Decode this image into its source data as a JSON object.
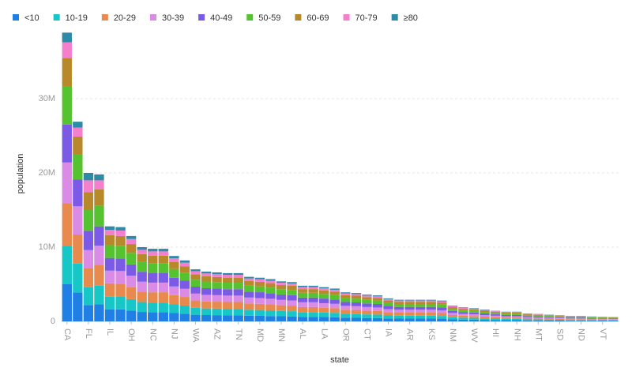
{
  "chart_data": {
    "type": "stacked_bar",
    "x_label": "state",
    "y_label": "population",
    "categories": [
      "CA",
      null,
      "FL",
      null,
      "IL",
      null,
      "OH",
      null,
      "NC",
      null,
      "NJ",
      null,
      "WA",
      null,
      "AZ",
      null,
      "TN",
      null,
      "MD",
      null,
      "MN",
      null,
      "AL",
      null,
      "LA",
      null,
      "OR",
      null,
      "CT",
      null,
      "IA",
      null,
      "AR",
      null,
      "KS",
      null,
      "NM",
      null,
      "WV",
      null,
      "HI",
      null,
      "NH",
      null,
      "MT",
      null,
      "SD",
      null,
      "ND",
      null,
      "VT",
      null
    ],
    "ylim": [
      0,
      40000000.0
    ],
    "yticks": [
      0,
      {
        "value": 10000000.0,
        "label": "10M"
      },
      {
        "value": 20000000.0,
        "label": "20M"
      },
      {
        "value": 30000000.0,
        "label": "30M"
      }
    ],
    "grid": true,
    "legend": "top",
    "series": [
      {
        "name": "<10",
        "color": "#1f7fe5",
        "values": [
          5000000.0,
          3900000.0,
          2200000.0,
          2300000.0,
          1630000.0,
          1610000.0,
          1460000.0,
          1270000.0,
          1240000.0,
          1240000.0,
          1120000.0,
          1040000.0,
          890000.0,
          850000.0,
          840000.0,
          830000.0,
          830000.0,
          760000.0,
          750000.0,
          720000.0,
          690000.0,
          670000.0,
          610000.0,
          610000.0,
          580000.0,
          560000.0,
          500000.0,
          480000.0,
          460000.0,
          440000.0,
          390000.0,
          370000.0,
          370000.0,
          370000.0,
          370000.0,
          360000.0,
          270000.0,
          240000.0,
          230000.0,
          200000.0,
          180000.0,
          170000.0,
          170000.0,
          130000.0,
          130000.0,
          120000.0,
          110000.0,
          90000.0,
          90000.0,
          80000.0,
          80000.0,
          70000.0
        ]
      },
      {
        "name": "10-19",
        "color": "#17c7c7",
        "values": [
          5200000.0,
          3900000.0,
          2400000.0,
          2500000.0,
          1700000.0,
          1690000.0,
          1530000.0,
          1330000.0,
          1300000.0,
          1300000.0,
          1170000.0,
          1090000.0,
          930000.0,
          890000.0,
          880000.0,
          860000.0,
          860000.0,
          800000.0,
          780000.0,
          760000.0,
          720000.0,
          700000.0,
          640000.0,
          640000.0,
          610000.0,
          590000.0,
          520000.0,
          510000.0,
          480000.0,
          470000.0,
          410000.0,
          390000.0,
          390000.0,
          390000.0,
          390000.0,
          370000.0,
          280000.0,
          250000.0,
          240000.0,
          210000.0,
          190000.0,
          170000.0,
          170000.0,
          140000.0,
          130000.0,
          120000.0,
          110000.0,
          100000.0,
          100000.0,
          90000.0,
          80000.0,
          80000.0
        ]
      },
      {
        "name": "20-29",
        "color": "#e8894d",
        "values": [
          5700000.0,
          3900000.0,
          2600000.0,
          2800000.0,
          1800000.0,
          1790000.0,
          1620000.0,
          1410000.0,
          1380000.0,
          1380000.0,
          1240000.0,
          1160000.0,
          990000.0,
          940000.0,
          930000.0,
          920000.0,
          920000.0,
          850000.0,
          830000.0,
          800000.0,
          760000.0,
          750000.0,
          680000.0,
          680000.0,
          650000.0,
          620000.0,
          550000.0,
          540000.0,
          510000.0,
          490000.0,
          440000.0,
          410000.0,
          410000.0,
          410000.0,
          410000.0,
          390000.0,
          300000.0,
          270000.0,
          250000.0,
          230000.0,
          200000.0,
          180000.0,
          180000.0,
          150000.0,
          140000.0,
          130000.0,
          120000.0,
          100000.0,
          100000.0,
          90000.0,
          90000.0,
          80000.0
        ]
      },
      {
        "name": "30-39",
        "color": "#d98be6",
        "values": [
          5500000.0,
          3800000.0,
          2400000.0,
          2600000.0,
          1700000.0,
          1690000.0,
          1530000.0,
          1330000.0,
          1300000.0,
          1300000.0,
          1170000.0,
          1090000.0,
          930000.0,
          890000.0,
          880000.0,
          860000.0,
          860000.0,
          800000.0,
          780000.0,
          760000.0,
          720000.0,
          700000.0,
          640000.0,
          640000.0,
          610000.0,
          590000.0,
          520000.0,
          510000.0,
          480000.0,
          470000.0,
          410000.0,
          390000.0,
          390000.0,
          390000.0,
          390000.0,
          370000.0,
          280000.0,
          250000.0,
          240000.0,
          210000.0,
          190000.0,
          170000.0,
          170000.0,
          140000.0,
          130000.0,
          120000.0,
          110000.0,
          100000.0,
          100000.0,
          90000.0,
          80000.0,
          80000.0
        ]
      },
      {
        "name": "40-49",
        "color": "#7b5be6",
        "values": [
          5100000.0,
          3600000.0,
          2600000.0,
          2600000.0,
          1720000.0,
          1700000.0,
          1540000.0,
          1340000.0,
          1310000.0,
          1310000.0,
          1180000.0,
          1100000.0,
          940000.0,
          900000.0,
          880000.0,
          870000.0,
          870000.0,
          800000.0,
          790000.0,
          760000.0,
          720000.0,
          710000.0,
          640000.0,
          640000.0,
          620000.0,
          590000.0,
          520000.0,
          510000.0,
          480000.0,
          470000.0,
          420000.0,
          390000.0,
          390000.0,
          390000.0,
          390000.0,
          380000.0,
          280000.0,
          250000.0,
          240000.0,
          210000.0,
          190000.0,
          170000.0,
          170000.0,
          140000.0,
          130000.0,
          120000.0,
          110000.0,
          100000.0,
          100000.0,
          90000.0,
          80000.0,
          80000.0
        ]
      },
      {
        "name": "50-59",
        "color": "#55c22f",
        "values": [
          5200000.0,
          3400000.0,
          2800000.0,
          2800000.0,
          1720000.0,
          1700000.0,
          1540000.0,
          1340000.0,
          1310000.0,
          1310000.0,
          1180000.0,
          1100000.0,
          940000.0,
          900000.0,
          880000.0,
          870000.0,
          870000.0,
          800000.0,
          790000.0,
          760000.0,
          720000.0,
          710000.0,
          640000.0,
          640000.0,
          620000.0,
          590000.0,
          520000.0,
          510000.0,
          480000.0,
          470000.0,
          420000.0,
          390000.0,
          390000.0,
          390000.0,
          390000.0,
          380000.0,
          280000.0,
          250000.0,
          240000.0,
          210000.0,
          190000.0,
          170000.0,
          170000.0,
          140000.0,
          130000.0,
          120000.0,
          110000.0,
          100000.0,
          100000.0,
          90000.0,
          80000.0,
          80000.0
        ]
      },
      {
        "name": "60-69",
        "color": "#b8892b",
        "values": [
          3800000.0,
          2400000.0,
          2400000.0,
          2200000.0,
          1330000.0,
          1320000.0,
          1200000.0,
          1040000.0,
          1020000.0,
          1020000.0,
          920000.0,
          850000.0,
          730000.0,
          700000.0,
          690000.0,
          680000.0,
          680000.0,
          620000.0,
          610000.0,
          590000.0,
          560000.0,
          550000.0,
          500000.0,
          500000.0,
          480000.0,
          460000.0,
          410000.0,
          400000.0,
          370000.0,
          360000.0,
          320000.0,
          300000.0,
          300000.0,
          300000.0,
          300000.0,
          290000.0,
          220000.0,
          200000.0,
          190000.0,
          170000.0,
          150000.0,
          140000.0,
          140000.0,
          110000.0,
          100000.0,
          100000.0,
          90000.0,
          80000.0,
          80000.0,
          70000.0,
          70000.0,
          60000.0
        ]
      },
      {
        "name": "70-79",
        "color": "#f47fcd",
        "values": [
          2100000.0,
          1200000.0,
          1600000.0,
          1200000.0,
          740000.0,
          740000.0,
          670000.0,
          580000.0,
          570000.0,
          570000.0,
          510000.0,
          480000.0,
          410000.0,
          390000.0,
          380000.0,
          380000.0,
          380000.0,
          350000.0,
          340000.0,
          330000.0,
          310000.0,
          310000.0,
          280000.0,
          280000.0,
          270000.0,
          260000.0,
          230000.0,
          220000.0,
          210000.0,
          200000.0,
          180000.0,
          170000.0,
          170000.0,
          170000.0,
          170000.0,
          160000.0,
          120000.0,
          110000.0,
          100000.0,
          90000.0,
          80000.0,
          80000.0,
          80000.0,
          60000.0,
          60000.0,
          50000.0,
          50000.0,
          40000.0,
          40000.0,
          40000.0,
          40000.0,
          30000.0
        ]
      },
      {
        "name": "≥80",
        "color": "#2e8aa7",
        "values": [
          1300000.0,
          800000.0,
          1000000.0,
          800000.0,
          460000.0,
          460000.0,
          410000.0,
          360000.0,
          350000.0,
          350000.0,
          320000.0,
          300000.0,
          250000.0,
          240000.0,
          240000.0,
          230000.0,
          230000.0,
          220000.0,
          210000.0,
          210000.0,
          190000.0,
          190000.0,
          170000.0,
          170000.0,
          170000.0,
          160000.0,
          140000.0,
          140000.0,
          130000.0,
          130000.0,
          110000.0,
          100000.0,
          100000.0,
          100000.0,
          100000.0,
          100000.0,
          80000.0,
          70000.0,
          60000.0,
          60000.0,
          50000.0,
          50000.0,
          50000.0,
          40000.0,
          40000.0,
          30000.0,
          30000.0,
          30000.0,
          30000.0,
          20000.0,
          20000.0,
          20000.0
        ]
      }
    ]
  }
}
